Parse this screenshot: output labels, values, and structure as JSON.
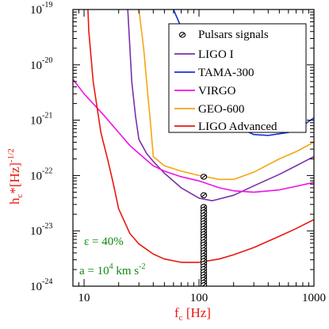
{
  "chart_data": {
    "type": "line",
    "x_scale": "log",
    "y_scale": "log",
    "xlim": [
      8,
      1000
    ],
    "ylim": [
      1e-24,
      1e-19
    ],
    "x_ticks": [
      {
        "value": 10,
        "label": "10"
      },
      {
        "value": 100,
        "label": "100"
      },
      {
        "value": 1000,
        "label": "1000"
      }
    ],
    "y_ticks": [
      {
        "value": 1e-24,
        "base": "10",
        "exp": "-24"
      },
      {
        "value": 1e-23,
        "base": "10",
        "exp": "-23"
      },
      {
        "value": 1e-22,
        "base": "10",
        "exp": "-22"
      },
      {
        "value": 1e-21,
        "base": "10",
        "exp": "-21"
      },
      {
        "value": 1e-20,
        "base": "10",
        "exp": "-20"
      },
      {
        "value": 1e-19,
        "base": "10",
        "exp": "-19"
      }
    ],
    "xlabel": {
      "main": "f",
      "sub": "c",
      "rest": " [Hz]"
    },
    "ylabel": {
      "main": "h",
      "sub": "c",
      "mid": "*[Hz]",
      "sup": "-1/2"
    },
    "legend_position": "top-right",
    "series": [
      {
        "name": "LIGO I",
        "color": "#7b2fa8",
        "x": [
          24,
          26,
          28,
          30,
          35,
          40,
          50,
          70,
          100,
          130,
          200,
          300,
          500,
          700,
          1000
        ],
        "y": [
          1e-19,
          5e-21,
          1.2e-21,
          4.5e-22,
          2.5e-22,
          1.8e-22,
          1.1e-22,
          6e-23,
          3.9e-23,
          3.5e-23,
          4.4e-23,
          6.5e-23,
          1.05e-22,
          1.5e-22,
          2.2e-22
        ]
      },
      {
        "name": "TAMA-300",
        "color": "#1a2fd6",
        "x": [
          60,
          80,
          100,
          150,
          200,
          300,
          400,
          600,
          800,
          1000
        ],
        "y": [
          1e-19,
          2.5e-20,
          8e-21,
          1.8e-21,
          8e-22,
          5.5e-22,
          5.3e-22,
          6e-22,
          8e-22,
          1.1e-21
        ]
      },
      {
        "name": "VIRGO",
        "color": "#ee12e6",
        "x": [
          8,
          10,
          15,
          20,
          25,
          30,
          40,
          50,
          70,
          100,
          150,
          200,
          300,
          500,
          1000
        ],
        "y": [
          5.5e-21,
          3e-21,
          1.2e-21,
          6e-22,
          3.5e-22,
          2.5e-22,
          1.5e-22,
          1.2e-22,
          9.5e-23,
          8e-23,
          6e-23,
          5.3e-23,
          5e-23,
          5.5e-23,
          7.5e-23
        ]
      },
      {
        "name": "GEO-600",
        "color": "#f5a513",
        "x": [
          30,
          33,
          35,
          38,
          40,
          50,
          70,
          100,
          150,
          200,
          300,
          500,
          700,
          1000
        ],
        "y": [
          1e-19,
          2e-20,
          5e-21,
          8e-22,
          2.2e-22,
          1.5e-22,
          1.2e-22,
          1e-22,
          8.5e-23,
          8.5e-23,
          1.15e-22,
          2e-22,
          2.7e-22,
          4e-22
        ]
      },
      {
        "name": "LIGO Advanced",
        "color": "#e8180e",
        "x": [
          10.8,
          11,
          12,
          14,
          16,
          18,
          20,
          25,
          30,
          40,
          50,
          70,
          100,
          150,
          200,
          300,
          500,
          700,
          1000
        ],
        "y": [
          1e-19,
          4e-20,
          5e-21,
          6e-22,
          2e-22,
          7e-23,
          2.5e-23,
          9e-24,
          5.8e-24,
          3.8e-24,
          3.1e-24,
          2.7e-24,
          2.7e-24,
          3.1e-24,
          3.7e-24,
          5e-24,
          8e-24,
          1.1e-23,
          1.6e-23
        ]
      }
    ],
    "pulsars": {
      "name": "Pulsars signals",
      "x": 110,
      "y": [
        9.5e-23,
        4.4e-23,
        2.7e-23,
        2.4e-23,
        2.15e-23,
        1.9e-23,
        1.7e-23,
        1.52e-23,
        1.36e-23,
        1.22e-23,
        1.09e-23,
        9.7e-24,
        8.7e-24,
        7.8e-24,
        7e-24,
        6.2e-24,
        5.6e-24,
        5e-24,
        4.45e-24,
        4e-24,
        3.55e-24,
        3.18e-24,
        2.84e-24,
        2.54e-24,
        2.27e-24,
        2.03e-24,
        1.81e-24,
        1.62e-24,
        1.45e-24,
        1.3e-24,
        1.16e-24,
        1.04e-24
      ]
    },
    "annotations": {
      "eps": "ε = 40%",
      "accel_pre": "a = 10",
      "accel_exp": "4",
      "accel_unit": " km s",
      "accel_unit_exp": "-2"
    }
  }
}
